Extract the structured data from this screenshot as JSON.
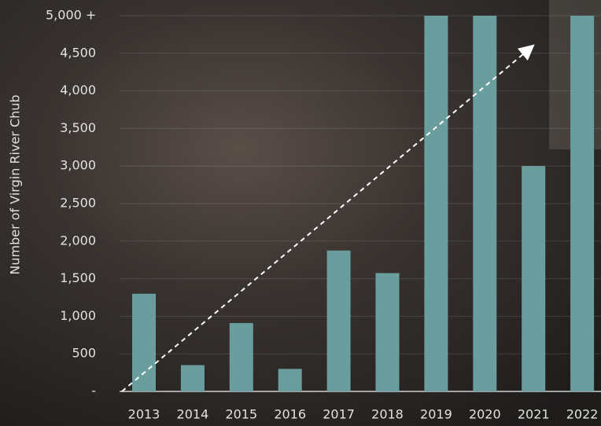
{
  "chart_data": {
    "type": "bar",
    "y_label": "Number of Virgin River Chub",
    "categories": [
      "2013",
      "2014",
      "2015",
      "2016",
      "2017",
      "2018",
      "2019",
      "2020",
      "2021",
      "2022"
    ],
    "values": [
      1300,
      350,
      910,
      300,
      1875,
      1575,
      5000,
      5000,
      3000,
      5000
    ],
    "color": "#6a9e9e",
    "ylim": [
      0,
      5000
    ],
    "yticks": [
      {
        "value": 0,
        "label": "-"
      },
      500,
      {
        "value": 1000,
        "label": "1,000"
      },
      {
        "value": 1500,
        "label": "1,500"
      },
      {
        "value": 2000,
        "label": "2,000"
      },
      {
        "value": 2500,
        "label": "2,500"
      },
      {
        "value": 3000,
        "label": "3,000"
      },
      {
        "value": 3500,
        "label": "3,500"
      },
      {
        "value": 4000,
        "label": "4,000"
      },
      {
        "value": 4500,
        "label": "4,500"
      },
      {
        "value": 5000,
        "label": "5,000 +"
      }
    ],
    "grid": true
  }
}
